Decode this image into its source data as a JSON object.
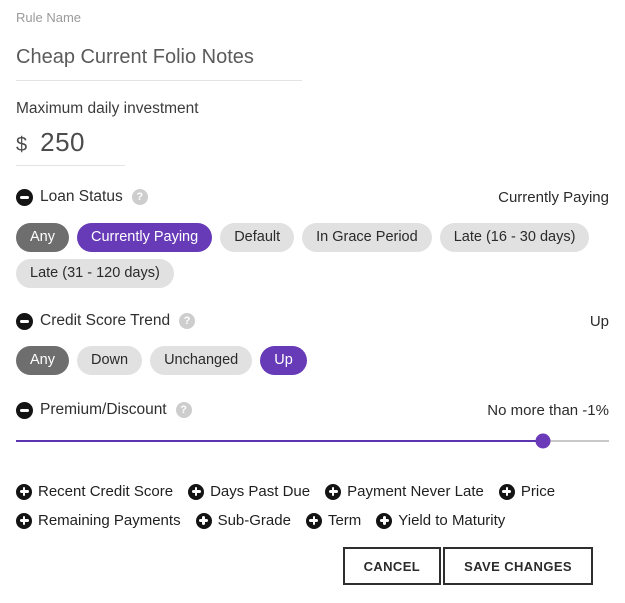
{
  "rule_name": {
    "label": "Rule Name",
    "value": "Cheap Current Folio Notes"
  },
  "max_daily": {
    "label": "Maximum daily investment",
    "currency": "$",
    "value": "250"
  },
  "sections": [
    {
      "id": "loan-status",
      "title": "Loan Status",
      "summary": "Currently Paying",
      "chips": [
        {
          "label": "Any",
          "variant": "any"
        },
        {
          "label": "Currently Paying",
          "variant": "selected"
        },
        {
          "label": "Default",
          "variant": "plain"
        },
        {
          "label": "In Grace Period",
          "variant": "plain"
        },
        {
          "label": "Late (16 - 30 days)",
          "variant": "plain"
        },
        {
          "label": "Late (31 - 120 days)",
          "variant": "plain"
        }
      ]
    },
    {
      "id": "credit-score-trend",
      "title": "Credit Score Trend",
      "summary": "Up",
      "chips": [
        {
          "label": "Any",
          "variant": "any"
        },
        {
          "label": "Down",
          "variant": "plain"
        },
        {
          "label": "Unchanged",
          "variant": "plain"
        },
        {
          "label": "Up",
          "variant": "selected"
        }
      ]
    },
    {
      "id": "premium-discount",
      "title": "Premium/Discount",
      "summary": "No more than -1%",
      "slider": {
        "percent": 88.8
      }
    }
  ],
  "add_criteria": {
    "row1": [
      "Recent Credit Score",
      "Days Past Due",
      "Payment Never Late",
      "Price"
    ],
    "row2": [
      "Remaining Payments",
      "Sub-Grade",
      "Term",
      "Yield to Maturity"
    ]
  },
  "actions": {
    "cancel": "CANCEL",
    "save": "SAVE CHANGES"
  },
  "icons": {
    "remove": "minus-circle",
    "help": "question-circle",
    "add": "plus-circle",
    "help_glyph": "?"
  },
  "colors": {
    "accent": "#673AB7",
    "chip_any": "#6E6E6E",
    "chip_plain": "#E1E1E1",
    "slider_track": "#C9C9C9",
    "icon_dark": "#141414"
  }
}
